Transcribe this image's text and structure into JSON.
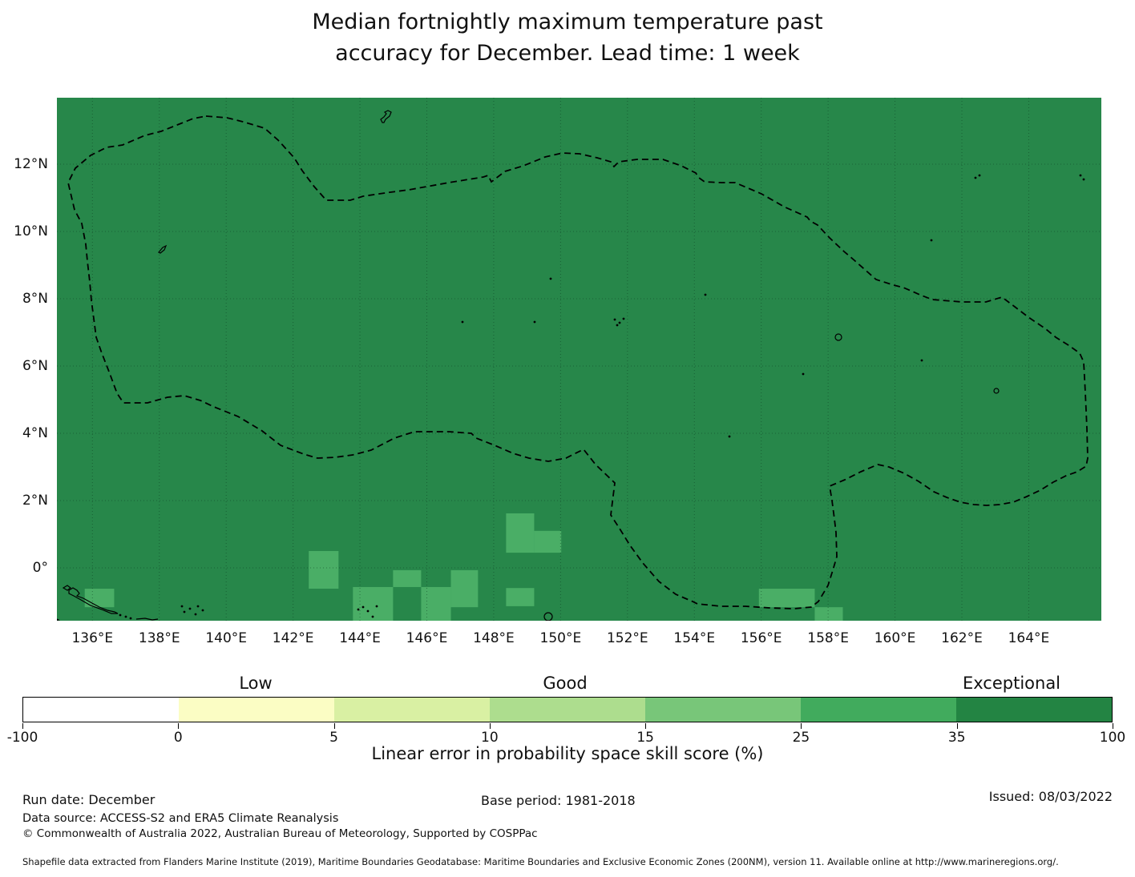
{
  "title": {
    "line1": "Median fortnightly maximum temperature past",
    "line2": "accuracy for December. Lead time: 1 week"
  },
  "map": {
    "x_tick_labels": [
      "136°E",
      "138°E",
      "140°E",
      "142°E",
      "144°E",
      "146°E",
      "148°E",
      "150°E",
      "152°E",
      "154°E",
      "156°E",
      "158°E",
      "160°E",
      "162°E",
      "164°E"
    ],
    "y_tick_labels": [
      "12°N",
      "10°N",
      "8°N",
      "6°N",
      "4°N",
      "2°N",
      "0°"
    ],
    "base_color": "#27874a",
    "anomaly_cell_color": "#4aae66",
    "boundary_line": "dashed-black-eez",
    "gridline_style": "dotted-dark"
  },
  "colorbar": {
    "category_labels": [
      "Low",
      "Good",
      "Exceptional"
    ],
    "tick_labels": [
      "-100",
      "0",
      "5",
      "10",
      "15",
      "25",
      "35",
      "100"
    ],
    "segment_colors": [
      "#ffffff",
      "#fbfdc4",
      "#d9f0a3",
      "#addd8e",
      "#78c679",
      "#41ab5d",
      "#238443"
    ],
    "caption": "Linear error in probability space skill score (%)"
  },
  "footer": {
    "run_date": "Run date: December",
    "data_source": "Data source: ACCESS-S2 and ERA5 Climate Reanalysis",
    "copyright": "© Commonwealth of Australia 2022, Australian Bureau of Meteorology, Supported by COSPPac",
    "base_period": "Base period: 1981-2018",
    "issued": "Issued: 08/03/2022",
    "shapefile_note": "Shapefile data extracted from Flanders Marine Institute (2019), Maritime Boundaries Geodatabase: Maritime Boundaries and Exclusive Economic Zones (200NM), version 11. Available online at http://www.marineregions.org/."
  },
  "chart_data": {
    "type": "heatmap",
    "title": "Median fortnightly maximum temperature past accuracy for December. Lead time: 1 week",
    "variable": "Linear error in probability space skill score (%)",
    "lon_ticks": [
      136,
      138,
      140,
      142,
      144,
      146,
      148,
      150,
      152,
      154,
      156,
      158,
      160,
      162,
      164
    ],
    "lat_ticks": [
      12,
      10,
      8,
      6,
      4,
      2,
      0
    ],
    "lon_range": [
      134.9,
      166.2
    ],
    "lat_range": [
      -1.6,
      14.0
    ],
    "bin_edges": [
      -100,
      0,
      5,
      10,
      15,
      25,
      35,
      100
    ],
    "bin_region_labels": {
      "0-5": "Low",
      "10-15": "Good",
      "35-100": "Exceptional"
    },
    "background_bin": "35-100",
    "anomaly_bin": "25-35",
    "anomaly_cells": [
      {
        "lon_min": 135.77,
        "lon_max": 136.65,
        "lat_min": -1.17,
        "lat_max": -0.62
      },
      {
        "lon_min": 142.47,
        "lon_max": 143.36,
        "lat_min": -0.62,
        "lat_max": 0.5
      },
      {
        "lon_min": 143.79,
        "lon_max": 144.99,
        "lat_min": -1.6,
        "lat_max": -0.57
      },
      {
        "lon_min": 144.99,
        "lon_max": 145.83,
        "lat_min": -0.57,
        "lat_max": -0.07
      },
      {
        "lon_min": 145.83,
        "lon_max": 146.72,
        "lat_min": -1.6,
        "lat_max": -0.57
      },
      {
        "lon_min": 146.72,
        "lon_max": 147.53,
        "lat_min": -1.17,
        "lat_max": -0.07
      },
      {
        "lon_min": 148.37,
        "lon_max": 149.21,
        "lat_min": 0.45,
        "lat_max": 1.62
      },
      {
        "lon_min": 149.21,
        "lon_max": 150.02,
        "lat_min": 0.45,
        "lat_max": 1.1
      },
      {
        "lon_min": 148.37,
        "lon_max": 149.21,
        "lat_min": -1.14,
        "lat_max": -0.6
      },
      {
        "lon_min": 155.93,
        "lon_max": 157.6,
        "lat_min": -1.17,
        "lat_max": -0.62
      },
      {
        "lon_min": 157.6,
        "lon_max": 158.44,
        "lat_min": -1.6,
        "lat_max": -1.17
      }
    ]
  }
}
